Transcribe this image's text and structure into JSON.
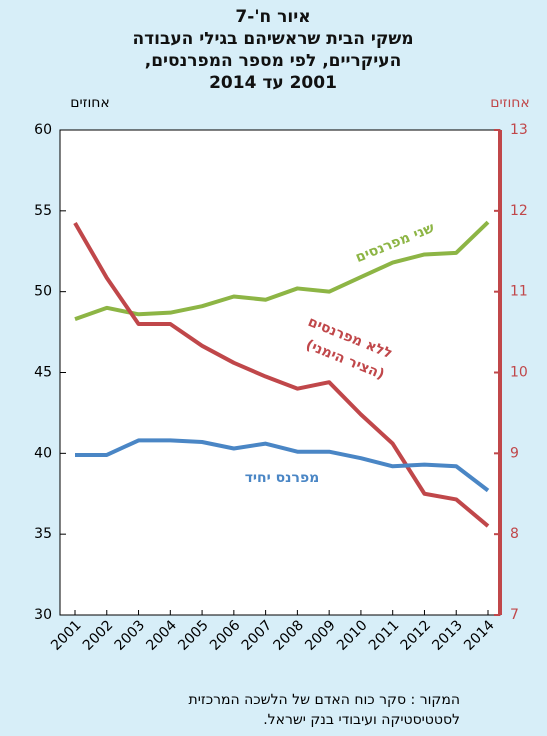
{
  "chart_data": {
    "type": "line",
    "title_lines": [
      "איור ח'-7",
      "משקי הבית שראשיהם בגילי העבודה",
      "העיקריים, לפי מספר המפרנסים,",
      "2001 עד 2014"
    ],
    "y_label": "אחוזים",
    "y2_label": "אחוזים",
    "categories": [
      "2001",
      "2002",
      "2003",
      "2004",
      "2005",
      "2006",
      "2007",
      "2008",
      "2009",
      "2010",
      "2011",
      "2012",
      "2013",
      "2014"
    ],
    "ylim": [
      30,
      60
    ],
    "yticks": [
      30,
      35,
      40,
      45,
      50,
      55,
      60
    ],
    "y2lim": [
      7,
      13
    ],
    "y2ticks": [
      7,
      8,
      9,
      10,
      11,
      12,
      13
    ],
    "series": [
      {
        "name": "שני מפרנסים",
        "color": "#8db545",
        "values": [
          48.3,
          49.0,
          48.6,
          48.7,
          49.1,
          49.7,
          49.5,
          50.2,
          50.0,
          50.9,
          51.8,
          52.3,
          52.4,
          54.3
        ]
      },
      {
        "name": "ללא מפרנסים",
        "annotation": "(הציר הימני)",
        "color": "#c0474a",
        "axis": "y2",
        "values": [
          11.85,
          11.17,
          10.6,
          10.6,
          10.33,
          10.12,
          9.95,
          9.8,
          9.88,
          9.48,
          9.12,
          8.5,
          8.43,
          8.1
        ]
      },
      {
        "name": "מפרנס יחיד",
        "color": "#4a86c5",
        "values": [
          39.9,
          39.9,
          40.8,
          40.8,
          40.7,
          40.3,
          40.6,
          40.1,
          40.1,
          39.7,
          39.2,
          39.3,
          39.2,
          37.7
        ]
      }
    ],
    "source_lines": [
      "המקור : סקר כוח האדם של הלשכה המרכזית",
      "לסטטיסטיקה ועיבודי בנק ישראל."
    ]
  }
}
